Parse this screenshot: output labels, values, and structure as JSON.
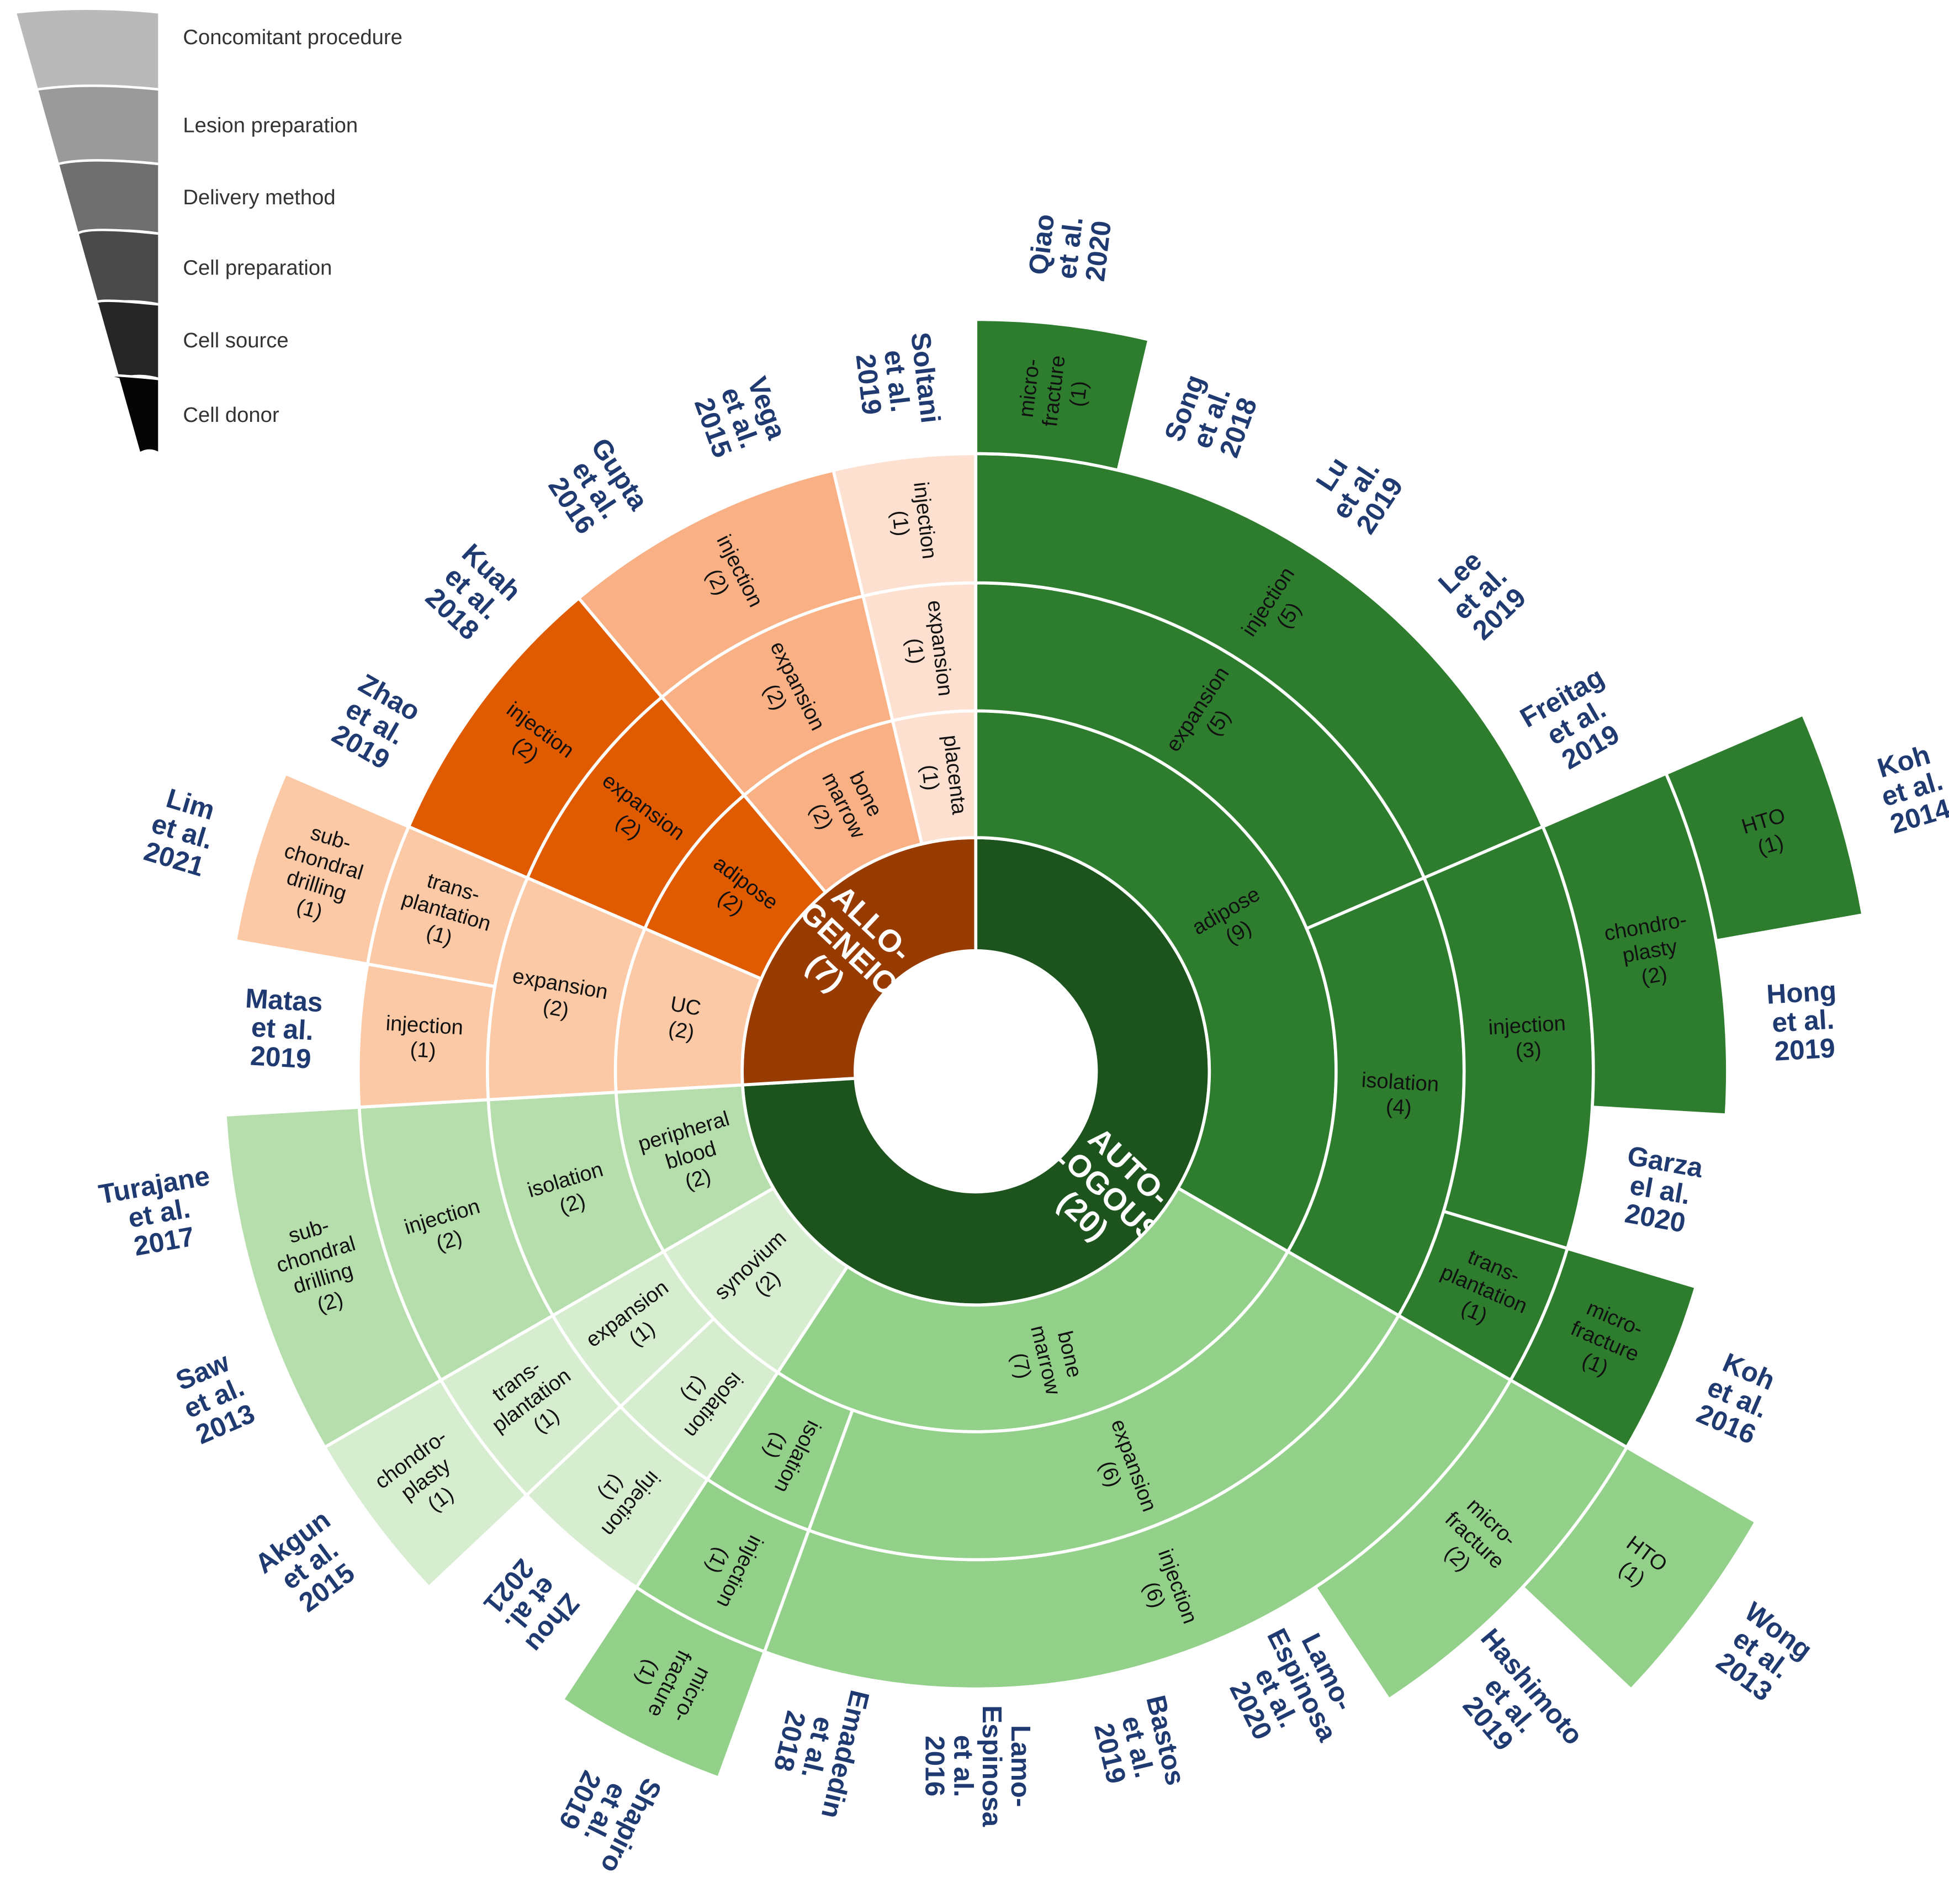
{
  "chart_data": {
    "type": "sunburst",
    "legend": [
      {
        "label": "Concomitant procedure",
        "color": "#b9b9b9"
      },
      {
        "label": "Lesion preparation",
        "color": "#9a9a9a"
      },
      {
        "label": "Delivery method",
        "color": "#6f6f6f"
      },
      {
        "label": "Cell preparation",
        "color": "#4a4a4a"
      },
      {
        "label": "Cell source",
        "color": "#262626"
      },
      {
        "label": "Cell donor",
        "color": "#050505"
      }
    ],
    "children": [
      {
        "label": [
          "AUTO-",
          "LOGOUS"
        ],
        "value": 20,
        "value_label": "(20)",
        "color": "#1d541d",
        "children": [
          {
            "label": [
              "adipose"
            ],
            "value": 9,
            "value_label": "(9)",
            "color": "#2e7d2e",
            "children": [
              {
                "label": [
                  "expansion"
                ],
                "value": 5,
                "value_label": "(5)",
                "children": [
                  {
                    "label": [
                      "injection"
                    ],
                    "value": 5,
                    "value_label": "(5)",
                    "children": [
                      {
                        "label": [
                          "micro-",
                          "fracture"
                        ],
                        "value": 1,
                        "value_label": "(1)",
                        "children": [
                          {
                            "study": [
                              "Qiao",
                              "et al.",
                              "2020"
                            ]
                          }
                        ]
                      },
                      {
                        "study": [
                          "Song",
                          "et al.",
                          "2018"
                        ]
                      },
                      {
                        "study": [
                          "Lu",
                          "et al.",
                          "2019"
                        ]
                      },
                      {
                        "study": [
                          "Lee",
                          "et al.",
                          "2019"
                        ]
                      },
                      {
                        "study": [
                          "Freitag",
                          "et al.",
                          "2019"
                        ]
                      }
                    ]
                  }
                ]
              },
              {
                "label": [
                  "isolation"
                ],
                "value": 4,
                "value_label": "(4)",
                "children": [
                  {
                    "label": [
                      "injection"
                    ],
                    "value": 3,
                    "value_label": "(3)",
                    "children": [
                      {
                        "label": [
                          "chondro-",
                          "plasty"
                        ],
                        "value": 2,
                        "value_label": "(2)",
                        "children": [
                          {
                            "label": [
                              "HTO"
                            ],
                            "value": 1,
                            "value_label": "(1)",
                            "children": [
                              {
                                "study": [
                                  "Koh",
                                  "et al.",
                                  "2014"
                                ]
                              }
                            ]
                          },
                          {
                            "study": [
                              "Hong",
                              "et al.",
                              "2019"
                            ]
                          }
                        ]
                      },
                      {
                        "study": [
                          "Garza",
                          "el al.",
                          "2020"
                        ]
                      }
                    ]
                  },
                  {
                    "label": [
                      "trans-",
                      "plantation"
                    ],
                    "value": 1,
                    "value_label": "(1)",
                    "children": [
                      {
                        "label": [
                          "micro-",
                          "fracture"
                        ],
                        "value": 1,
                        "value_label": "(1)",
                        "children": [
                          {
                            "study": [
                              "Koh",
                              "et al.",
                              "2016"
                            ]
                          }
                        ]
                      }
                    ]
                  }
                ]
              }
            ]
          },
          {
            "label": [
              "bone",
              "marrow"
            ],
            "value": 7,
            "value_label": "(7)",
            "color": "#93d18a",
            "children": [
              {
                "label": [
                  "expansion"
                ],
                "value": 6,
                "value_label": "(6)",
                "children": [
                  {
                    "label": [
                      "injection"
                    ],
                    "value": 6,
                    "value_label": "(6)",
                    "children": [
                      {
                        "label": [
                          "micro-",
                          "fracture"
                        ],
                        "value": 2,
                        "value_label": "(2)",
                        "children": [
                          {
                            "label": [
                              "HTO"
                            ],
                            "value": 1,
                            "value_label": "(1)",
                            "children": [
                              {
                                "study": [
                                  "Wong",
                                  "et al.",
                                  "2013"
                                ]
                              }
                            ]
                          },
                          {
                            "study": [
                              "Hashimoto",
                              "et al.",
                              "2019"
                            ]
                          }
                        ]
                      },
                      {
                        "study": [
                          "Lamo-",
                          "Espinosa",
                          "et al.",
                          "2020"
                        ]
                      },
                      {
                        "study": [
                          "Bastos",
                          "et al.",
                          "2019"
                        ]
                      },
                      {
                        "study": [
                          "Lamo-",
                          "Espinosa",
                          "et al.",
                          "2016"
                        ]
                      },
                      {
                        "study": [
                          "Emadedin",
                          "et al.",
                          "2018"
                        ]
                      }
                    ]
                  }
                ]
              },
              {
                "label": [
                  "isolation"
                ],
                "value": 1,
                "value_label": "(1)",
                "children": [
                  {
                    "label": [
                      "injection"
                    ],
                    "value": 1,
                    "value_label": "(1)",
                    "children": [
                      {
                        "label": [
                          "micro-",
                          "fracture"
                        ],
                        "value": 1,
                        "value_label": "(1)",
                        "children": [
                          {
                            "study": [
                              "Shapiro",
                              "et al.",
                              "2019"
                            ]
                          }
                        ]
                      }
                    ]
                  }
                ]
              }
            ]
          },
          {
            "label": [
              "synovium"
            ],
            "value": 2,
            "value_label": "(2)",
            "color": "#d7edd0",
            "children": [
              {
                "label": [
                  "isolation"
                ],
                "value": 1,
                "value_label": "(1)",
                "children": [
                  {
                    "label": [
                      "injection"
                    ],
                    "value": 1,
                    "value_label": "(1)",
                    "children": [
                      {
                        "study": [
                          "Zhou",
                          "et al.",
                          "2021"
                        ]
                      }
                    ]
                  }
                ]
              },
              {
                "label": [
                  "expansion"
                ],
                "value": 1,
                "value_label": "(1)",
                "children": [
                  {
                    "label": [
                      "trans-",
                      "plantation"
                    ],
                    "value": 1,
                    "value_label": "(1)",
                    "children": [
                      {
                        "label": [
                          "chondro-",
                          "plasty"
                        ],
                        "value": 1,
                        "value_label": "(1)",
                        "children": [
                          {
                            "study": [
                              "Akgun",
                              "et al.",
                              "2015"
                            ]
                          }
                        ]
                      }
                    ]
                  }
                ]
              }
            ]
          },
          {
            "label": [
              "peripheral",
              "blood"
            ],
            "value": 2,
            "value_label": "(2)",
            "color": "#b6deac",
            "children": [
              {
                "label": [
                  "isolation"
                ],
                "value": 2,
                "value_label": "(2)",
                "children": [
                  {
                    "label": [
                      "injection"
                    ],
                    "value": 2,
                    "value_label": "(2)",
                    "children": [
                      {
                        "label": [
                          "sub-",
                          "chondral",
                          "drilling"
                        ],
                        "value": 2,
                        "value_label": "(2)",
                        "children": [
                          {
                            "study": [
                              "Saw",
                              "et al.",
                              "2013"
                            ]
                          },
                          {
                            "study": [
                              "Turajane",
                              "et al.",
                              "2017"
                            ]
                          }
                        ]
                      }
                    ]
                  }
                ]
              }
            ]
          }
        ]
      },
      {
        "label": [
          "ALLO-",
          "GENEIC"
        ],
        "value": 7,
        "value_label": "(7)",
        "color": "#983b00",
        "children": [
          {
            "label": [
              "UC"
            ],
            "value": 2,
            "value_label": "(2)",
            "color": "#fcc9a6",
            "children": [
              {
                "label": [
                  "expansion"
                ],
                "value": 2,
                "value_label": "(2)",
                "children": [
                  {
                    "label": [
                      "injection"
                    ],
                    "value": 1,
                    "value_label": "(1)",
                    "children": [
                      {
                        "study": [
                          "Matas",
                          "et al.",
                          "2019"
                        ]
                      }
                    ]
                  },
                  {
                    "label": [
                      "trans-",
                      "plantation"
                    ],
                    "value": 1,
                    "value_label": "(1)",
                    "children": [
                      {
                        "label": [
                          "sub-",
                          "chondral",
                          "drilling"
                        ],
                        "value": 1,
                        "value_label": "(1)",
                        "children": [
                          {
                            "study": [
                              "Lim",
                              "et al.",
                              "2021"
                            ]
                          }
                        ]
                      }
                    ]
                  }
                ]
              }
            ]
          },
          {
            "label": [
              "adipose"
            ],
            "value": 2,
            "value_label": "(2)",
            "color": "#e05a00",
            "children": [
              {
                "label": [
                  "expansion"
                ],
                "value": 2,
                "value_label": "(2)",
                "children": [
                  {
                    "label": [
                      "injection"
                    ],
                    "value": 2,
                    "value_label": "(2)",
                    "children": [
                      {
                        "study": [
                          "Zhao",
                          "et al.",
                          "2019"
                        ]
                      },
                      {
                        "study": [
                          "Kuah",
                          "et al.",
                          "2018"
                        ]
                      }
                    ]
                  }
                ]
              }
            ]
          },
          {
            "label": [
              "bone",
              "marrow"
            ],
            "value": 2,
            "value_label": "(2)",
            "color": "#f9b084",
            "children": [
              {
                "label": [
                  "expansion"
                ],
                "value": 2,
                "value_label": "(2)",
                "children": [
                  {
                    "label": [
                      "injection"
                    ],
                    "value": 2,
                    "value_label": "(2)",
                    "children": [
                      {
                        "study": [
                          "Gupta",
                          "et al.",
                          "2016"
                        ]
                      },
                      {
                        "study": [
                          "Vega",
                          "et al.",
                          "2015"
                        ]
                      }
                    ]
                  }
                ]
              }
            ]
          },
          {
            "label": [
              "placenta"
            ],
            "value": 1,
            "value_label": "(1)",
            "color": "#fde0d0",
            "children": [
              {
                "label": [
                  "expansion"
                ],
                "value": 1,
                "value_label": "(1)",
                "children": [
                  {
                    "label": [
                      "injection"
                    ],
                    "value": 1,
                    "value_label": "(1)",
                    "children": [
                      {
                        "study": [
                          "Soltani",
                          "et al.",
                          "2019"
                        ]
                      }
                    ]
                  }
                ]
              }
            ]
          }
        ]
      }
    ]
  }
}
